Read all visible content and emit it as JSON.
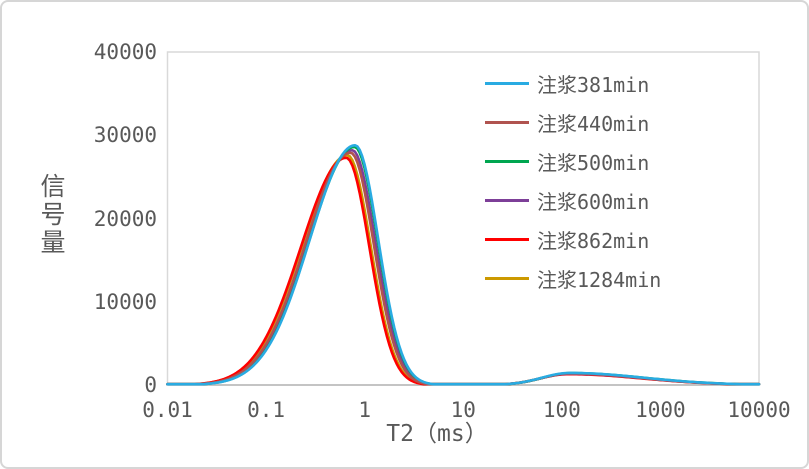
{
  "colors": {
    "text": "#595959",
    "plot_border": "#d9d9d9",
    "axis_line": "#c4c4c4",
    "background": "#ffffff",
    "canvas_border": "#d6d6d6"
  },
  "chart_data": {
    "type": "line",
    "title": "",
    "xlabel": "T2（ms）",
    "ylabel": "信号量",
    "x_scale": "log",
    "xlim": [
      0.01,
      10000
    ],
    "ylim": [
      0,
      40000
    ],
    "grid": false,
    "legend_position": "inside-top-right",
    "xticks": {
      "values": [
        0.01,
        0.1,
        1,
        10,
        100,
        1000,
        10000
      ],
      "labels": [
        "0.01",
        "0.1",
        "1",
        "10",
        "100",
        "1000",
        "10000"
      ]
    },
    "yticks": {
      "values": [
        0,
        10000,
        20000,
        30000,
        40000
      ],
      "labels": [
        "0",
        "10000",
        "20000",
        "30000",
        "40000"
      ]
    },
    "curve_shape": {
      "main_sigma_left_decades": 0.46,
      "main_sigma_right_decades": 0.235,
      "bump_sigma_left_decades": 0.28,
      "bump_sigma_right_decades": 0.75
    },
    "series": [
      {
        "name": "注浆381min",
        "color": "#29abe2",
        "peak1": {
          "center_ms": 0.8,
          "amplitude": 28800
        },
        "peak2": {
          "center_ms": 120,
          "amplitude": 1450
        }
      },
      {
        "name": "注浆440min",
        "color": "#b0534f",
        "peak1": {
          "center_ms": 0.72,
          "amplitude": 27900
        },
        "peak2": {
          "center_ms": 118,
          "amplitude": 1380
        }
      },
      {
        "name": "注浆500min",
        "color": "#00a650",
        "peak1": {
          "center_ms": 0.79,
          "amplitude": 28600
        },
        "peak2": {
          "center_ms": 122,
          "amplitude": 1430
        }
      },
      {
        "name": "注浆600min",
        "color": "#7d3f98",
        "peak1": {
          "center_ms": 0.75,
          "amplitude": 28200
        },
        "peak2": {
          "center_ms": 118,
          "amplitude": 1350
        }
      },
      {
        "name": "注浆862min",
        "color": "#ff0000",
        "peak1": {
          "center_ms": 0.65,
          "amplitude": 27300
        },
        "peak2": {
          "center_ms": 115,
          "amplitude": 1300
        }
      },
      {
        "name": "注浆1284min",
        "color": "#cc9900",
        "peak1": {
          "center_ms": 0.67,
          "amplitude": 27600
        },
        "peak2": {
          "center_ms": 115,
          "amplitude": 1330
        }
      }
    ]
  }
}
